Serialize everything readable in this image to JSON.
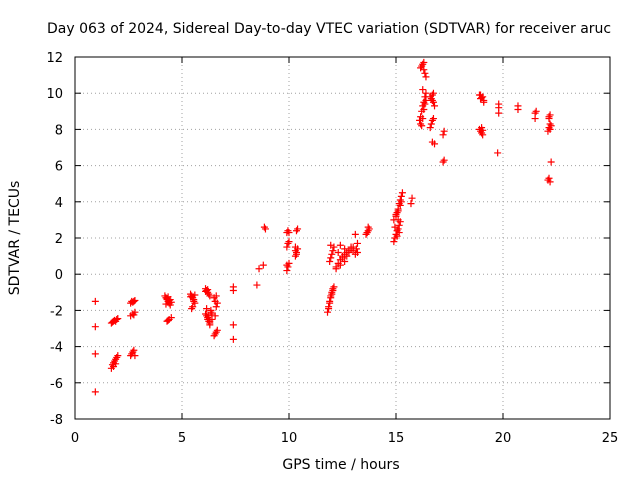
{
  "chart_data": {
    "type": "scatter",
    "title": "Day 063 of 2024, Sidereal Day-to-day VTEC variation (SDTVAR) for receiver aruc",
    "xlabel": "GPS time / hours",
    "ylabel": "SDTVAR / TECUs",
    "xlim": [
      0,
      25
    ],
    "ylim": [
      -8,
      12
    ],
    "xticks": [
      0,
      5,
      10,
      15,
      20,
      25
    ],
    "yticks": [
      -8,
      -6,
      -4,
      -2,
      0,
      2,
      4,
      6,
      8,
      10,
      12
    ],
    "grid": true,
    "marker": "plus",
    "color": "#ff0000",
    "series": [
      {
        "name": "SDTVAR",
        "x": [
          0.95,
          0.95,
          0.95,
          0.95,
          1.7,
          1.75,
          1.8,
          1.85,
          1.9,
          1.95,
          2.0,
          1.7,
          1.75,
          1.8,
          1.85,
          1.9,
          1.95,
          2.0,
          1.8,
          1.9,
          2.6,
          2.65,
          2.7,
          2.75,
          2.8,
          2.6,
          2.7,
          2.8,
          2.75,
          2.6,
          2.65,
          2.7,
          2.75,
          2.8,
          4.2,
          4.25,
          4.3,
          4.35,
          4.4,
          4.45,
          4.5,
          4.3,
          4.4,
          4.35,
          4.25,
          4.45,
          4.3,
          4.4,
          4.5,
          4.35,
          5.4,
          5.45,
          5.5,
          5.55,
          5.6,
          5.5,
          5.45,
          5.55,
          5.4,
          5.6,
          6.1,
          6.15,
          6.2,
          6.25,
          6.3,
          6.35,
          6.4,
          6.2,
          6.3,
          6.25,
          6.35,
          6.15,
          6.4,
          6.3,
          6.2,
          6.1,
          6.1,
          6.15,
          6.2,
          6.25,
          6.3,
          6.5,
          6.55,
          6.6,
          6.65,
          6.6,
          6.55,
          6.5,
          6.6,
          6.65,
          6.55,
          7.4,
          7.4,
          7.4,
          7.4,
          8.5,
          8.6,
          8.8,
          8.85,
          8.9,
          9.9,
          9.95,
          10.0,
          9.9,
          9.95,
          10.0,
          9.9,
          9.95,
          10.0,
          9.9,
          10.3,
          10.35,
          10.4,
          10.3,
          10.35,
          10.4,
          10.35,
          10.3,
          11.8,
          11.85,
          11.9,
          11.95,
          12.0,
          12.05,
          12.1,
          11.9,
          12.0,
          11.85,
          12.05,
          11.95,
          11.9,
          11.95,
          12.0,
          12.05,
          12.1,
          11.95,
          12.2,
          12.3,
          12.4,
          12.5,
          12.6,
          12.7,
          12.8,
          12.9,
          13.0,
          12.4,
          12.6,
          12.8,
          12.5,
          12.7,
          12.3,
          12.9,
          13.0,
          12.6,
          12.4,
          12.2,
          13.1,
          13.2,
          13.1,
          13.2,
          13.15,
          13.6,
          13.65,
          13.7,
          13.75,
          13.7,
          13.65,
          14.9,
          14.95,
          15.0,
          15.05,
          15.1,
          15.15,
          15.2,
          15.0,
          15.05,
          15.1,
          15.15,
          15.2,
          15.25,
          15.1,
          14.95,
          14.9,
          15.0,
          15.1,
          15.2,
          15.25,
          15.3,
          15.05,
          15.15,
          15.7,
          15.75,
          16.1,
          16.15,
          16.2,
          16.25,
          16.3,
          16.35,
          16.4,
          16.2,
          16.3,
          16.25,
          16.35,
          16.15,
          16.4,
          16.3,
          16.15,
          16.2,
          16.25,
          16.3,
          16.35,
          16.4,
          16.25,
          16.6,
          16.65,
          16.7,
          16.75,
          16.8,
          16.7,
          16.65,
          16.75,
          16.6,
          16.7,
          16.8,
          16.7,
          16.75,
          17.2,
          17.25,
          17.2,
          17.25,
          18.9,
          18.95,
          19.0,
          19.05,
          19.1,
          18.95,
          19.05,
          18.9,
          19.0,
          19.0,
          19.05,
          19.1,
          18.95,
          19.8,
          19.8,
          19.8,
          19.75,
          20.7,
          20.7,
          21.5,
          21.55,
          21.5,
          22.1,
          22.15,
          22.2,
          22.25,
          22.1,
          22.2,
          22.15,
          22.25,
          22.2,
          22.15,
          22.2,
          22.15
        ],
        "y": [
          -6.5,
          -4.4,
          -2.9,
          -1.5,
          -5.2,
          -5.0,
          -4.9,
          -4.8,
          -4.7,
          -4.6,
          -4.5,
          -2.7,
          -2.65,
          -2.6,
          -2.55,
          -2.6,
          -2.5,
          -2.45,
          -5.1,
          -4.95,
          -4.5,
          -4.4,
          -4.3,
          -4.2,
          -4.5,
          -2.3,
          -2.2,
          -2.1,
          -2.25,
          -1.6,
          -1.5,
          -1.55,
          -1.5,
          -1.45,
          -1.2,
          -1.3,
          -1.4,
          -1.5,
          -1.6,
          -1.7,
          -1.55,
          -1.35,
          -1.45,
          -1.25,
          -1.65,
          -1.4,
          -2.6,
          -2.5,
          -2.4,
          -2.55,
          -1.1,
          -1.2,
          -1.3,
          -1.5,
          -1.6,
          -1.8,
          -1.9,
          -1.4,
          -1.25,
          -1.15,
          -0.8,
          -0.9,
          -1.0,
          -1.1,
          -1.2,
          -2.0,
          -2.2,
          -2.4,
          -2.6,
          -2.3,
          -2.1,
          -1.9,
          -2.5,
          -2.7,
          -0.85,
          -0.95,
          -2.2,
          -2.3,
          -2.5,
          -2.6,
          -2.8,
          -3.4,
          -3.3,
          -3.2,
          -3.1,
          -1.8,
          -1.5,
          -1.3,
          -1.2,
          -1.6,
          -2.3,
          -3.6,
          -2.8,
          -0.9,
          -0.7,
          -0.6,
          0.3,
          0.5,
          2.6,
          2.5,
          0.2,
          0.4,
          0.6,
          1.5,
          1.7,
          1.8,
          2.3,
          2.4,
          2.3,
          0.5,
          1.0,
          1.2,
          1.4,
          1.5,
          2.4,
          2.5,
          1.1,
          1.3,
          -2.1,
          -1.8,
          -1.5,
          -1.2,
          -1.0,
          -0.8,
          -0.7,
          -1.6,
          -1.1,
          -1.9,
          -0.9,
          -1.3,
          0.7,
          0.9,
          1.1,
          1.3,
          1.5,
          1.6,
          0.4,
          0.6,
          0.8,
          1.0,
          1.1,
          1.2,
          1.3,
          1.4,
          1.5,
          1.6,
          1.4,
          1.2,
          0.9,
          1.0,
          1.2,
          1.5,
          1.3,
          0.7,
          0.5,
          0.3,
          1.1,
          1.2,
          2.2,
          1.7,
          1.4,
          2.2,
          2.3,
          2.4,
          2.5,
          2.6,
          2.3,
          1.8,
          2.0,
          2.2,
          2.4,
          2.5,
          2.7,
          2.9,
          3.2,
          3.4,
          3.6,
          3.9,
          4.1,
          4.3,
          3.0,
          2.6,
          3.0,
          3.3,
          3.5,
          3.8,
          4.0,
          4.5,
          2.1,
          2.3,
          3.9,
          4.2,
          8.5,
          8.7,
          9.0,
          9.3,
          9.5,
          9.8,
          10.0,
          11.5,
          11.3,
          11.6,
          11.1,
          11.4,
          10.9,
          11.7,
          8.3,
          8.2,
          8.6,
          9.1,
          9.4,
          9.6,
          10.2,
          9.8,
          9.7,
          9.6,
          9.5,
          9.3,
          8.5,
          8.3,
          8.6,
          8.1,
          7.3,
          7.2,
          9.9,
          10.0,
          6.2,
          6.3,
          7.7,
          7.9,
          8.0,
          7.9,
          7.8,
          7.7,
          9.6,
          9.7,
          9.8,
          9.9,
          9.75,
          8.1,
          7.95,
          9.5,
          9.9,
          9.2,
          9.4,
          8.9,
          6.7,
          9.3,
          9.1,
          8.9,
          9.0,
          8.6,
          5.2,
          5.3,
          5.1,
          6.2,
          7.9,
          8.0,
          8.1,
          8.2,
          8.3,
          8.6,
          8.8,
          8.7
        ]
      }
    ]
  }
}
